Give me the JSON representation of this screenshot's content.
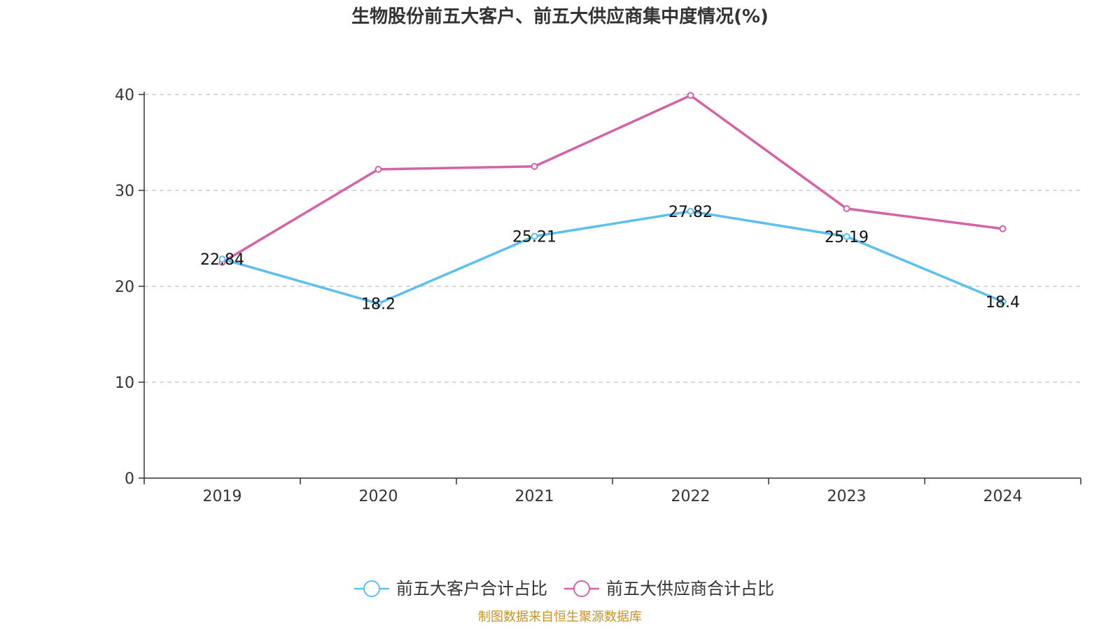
{
  "chart_data": {
    "type": "line",
    "title": "生物股份前五大客户、前五大供应商集中度情况(%)",
    "categories": [
      "2019",
      "2020",
      "2021",
      "2022",
      "2023",
      "2024"
    ],
    "yticks": [
      "0",
      "10",
      "20",
      "30",
      "40"
    ],
    "ylim": [
      0,
      40
    ],
    "grid": true,
    "legend_position": "bottom",
    "series": [
      {
        "name": "前五大客户合计占比",
        "color": "#5bc0f0",
        "values": [
          22.84,
          18.2,
          25.21,
          27.82,
          25.19,
          18.4
        ],
        "labels": [
          "22.84",
          "18.2",
          "25.21",
          "27.82",
          "25.19",
          "18.4"
        ]
      },
      {
        "name": "前五大供应商合计占比",
        "color": "#d462a8",
        "values": [
          22.5,
          32.2,
          32.5,
          39.9,
          28.1,
          26.0
        ],
        "labels": [
          "",
          "",
          "",
          "",
          "",
          ""
        ]
      }
    ]
  },
  "source": {
    "text": "制图数据来自恒生聚源数据库",
    "color": "#c8922a"
  }
}
